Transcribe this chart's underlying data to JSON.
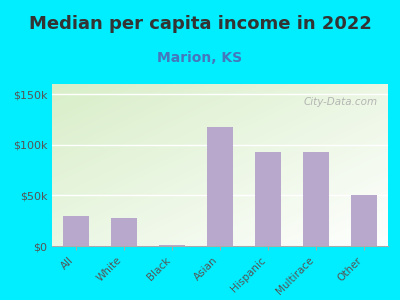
{
  "title": "Median per capita income in 2022",
  "subtitle": "Marion, KS",
  "categories": [
    "All",
    "White",
    "Black",
    "Asian",
    "Hispanic",
    "Multirace",
    "Other"
  ],
  "values": [
    30000,
    28000,
    500,
    118000,
    93000,
    93000,
    50000
  ],
  "bar_color": "#b8a8cc",
  "title_fontsize": 13,
  "subtitle_fontsize": 10,
  "subtitle_color": "#4477bb",
  "title_color": "#333333",
  "background_outer": "#00eeff",
  "background_inner_top_left": "#d8eec8",
  "background_inner_bottom_right": "#ffffff",
  "ytick_labels": [
    "$0",
    "$50k",
    "$100k",
    "$150k"
  ],
  "ytick_values": [
    0,
    50000,
    100000,
    150000
  ],
  "ylim": [
    0,
    160000
  ],
  "tick_color": "#555555",
  "watermark": "City-Data.com"
}
